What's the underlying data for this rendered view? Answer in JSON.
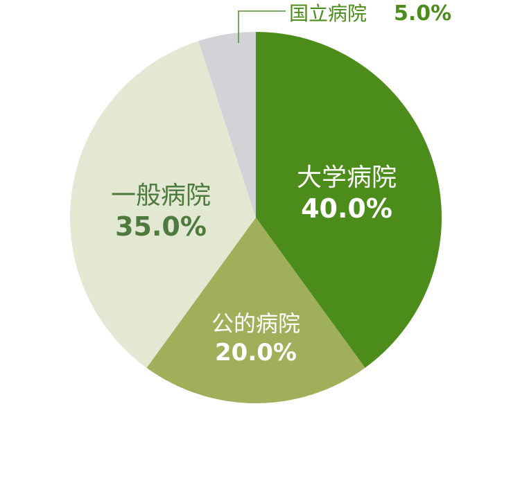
{
  "chart_data": {
    "type": "pie",
    "title": "",
    "slices": [
      {
        "label": "大学病院",
        "value": 40.0,
        "value_label": "40.0%",
        "color": "#4b8c1a",
        "label_color": "#ffffff"
      },
      {
        "label": "公的病院",
        "value": 20.0,
        "value_label": "20.0%",
        "color": "#9faf5a",
        "label_color": "#ffffff"
      },
      {
        "label": "一般病院",
        "value": 35.0,
        "value_label": "35.0%",
        "color": "#e2e8d2",
        "label_color": "#4e7a40"
      },
      {
        "label": "国立病院",
        "value": 5.0,
        "value_label": "5.0%",
        "color": "#d2d3d6",
        "label_color": "#4b8c1a"
      }
    ],
    "legend": "none"
  }
}
